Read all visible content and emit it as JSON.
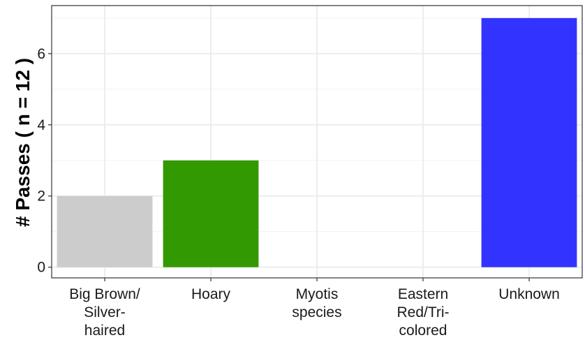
{
  "chart_data": {
    "type": "bar",
    "title": "",
    "xlabel": "",
    "ylabel": "# Passes ( n = 12 )",
    "categories": [
      {
        "lines": [
          "Big Brown/",
          "Silver-",
          "haired"
        ]
      },
      {
        "lines": [
          "Hoary"
        ]
      },
      {
        "lines": [
          "Myotis",
          "species"
        ]
      },
      {
        "lines": [
          "Eastern",
          "Red/Tri-",
          "colored"
        ]
      },
      {
        "lines": [
          "Unknown"
        ]
      }
    ],
    "values": [
      2,
      3,
      0,
      0,
      7
    ],
    "colors": [
      "#cccccc",
      "#339900",
      "#ffffff",
      "#ffffff",
      "#3333ff"
    ],
    "ylim": [
      -0.3,
      7.35
    ],
    "yticks": [
      0,
      2,
      4,
      6
    ],
    "grid": true,
    "legend": "none",
    "theme": "bw"
  }
}
